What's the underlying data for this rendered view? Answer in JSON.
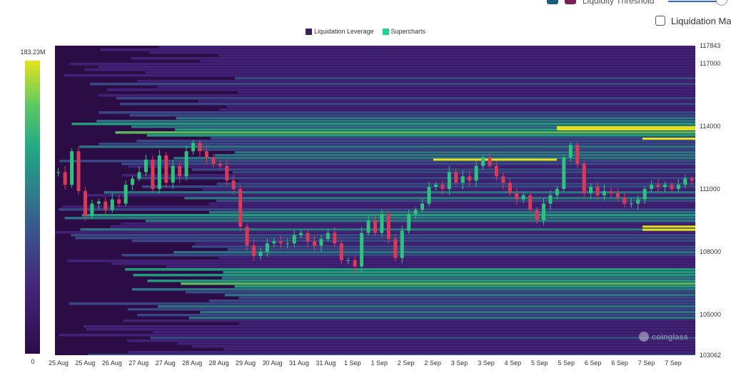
{
  "controls": {
    "threshold_label": "Liquidity Threshold",
    "liquidation_map_label": "Liquidation Map",
    "swatch_colors": [
      "#1d5a7c",
      "#7a1f5c"
    ]
  },
  "legend": [
    {
      "label": "Liquidation Leverage",
      "color": "#3b1e5c"
    },
    {
      "label": "Supercharts",
      "color": "#1dd38f"
    }
  ],
  "colorbar": {
    "max_label": "183.23M",
    "min_label": "0"
  },
  "watermark": "coinglass",
  "chart_data": {
    "type": "heatmap",
    "title": "",
    "xlabel": "",
    "ylabel": "",
    "x_ticks": [
      "25 Aug",
      "25 Aug",
      "26 Aug",
      "27 Aug",
      "27 Aug",
      "28 Aug",
      "28 Aug",
      "29 Aug",
      "30 Aug",
      "31 Aug",
      "31 Aug",
      "1 Sep",
      "1 Sep",
      "2 Sep",
      "2 Sep",
      "3 Sep",
      "3 Sep",
      "4 Sep",
      "5 Sep",
      "5 Sep",
      "6 Sep",
      "6 Sep",
      "7 Sep",
      "7 Sep"
    ],
    "y_ticks": [
      117843,
      117000,
      114000,
      111000,
      108000,
      105000,
      103062
    ],
    "ylim": [
      103062,
      117843
    ],
    "colorscale": [
      "#2c0c45",
      "#43247a",
      "#3b4f8c",
      "#2f7d8b",
      "#22a884",
      "#5ec962",
      "#e6e41c"
    ],
    "value_range": [
      0,
      183.23
    ],
    "value_unit": "M",
    "price_path": [
      111800,
      111200,
      112800,
      110900,
      109700,
      110300,
      110400,
      110000,
      110500,
      110300,
      111200,
      111500,
      111800,
      112400,
      111000,
      112600,
      111300,
      112100,
      111600,
      112800,
      113200,
      112800,
      112500,
      112200,
      112100,
      111400,
      111000,
      109200,
      108300,
      107800,
      108000,
      108400,
      108500,
      108400,
      108400,
      108800,
      108900,
      108500,
      108300,
      108600,
      108900,
      108400,
      107600,
      107600,
      107300,
      108900,
      109500,
      108900,
      109800,
      108600,
      107700,
      109000,
      109800,
      110000,
      110300,
      111100,
      111200,
      111000,
      111800,
      111300,
      111600,
      111400,
      112100,
      112500,
      112100,
      111600,
      111300,
      110800,
      110500,
      110700,
      110000,
      109500,
      110300,
      110700,
      111000,
      112500,
      113100,
      112200,
      110800,
      111100,
      110700,
      110900,
      110800,
      110600,
      110300,
      110300,
      110500,
      111000,
      111200,
      111100,
      111200,
      111000,
      111200,
      111500,
      111400
    ]
  }
}
